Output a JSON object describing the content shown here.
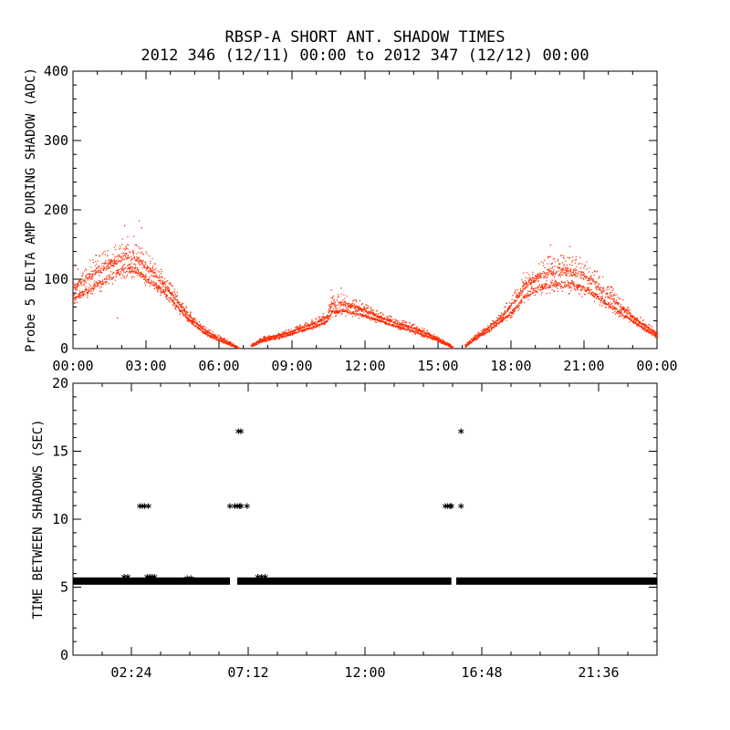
{
  "title": "RBSP-A SHORT ANT. SHADOW TIMES",
  "subtitle": "2012 346 (12/11) 00:00 to 2012 347 (12/12) 00:00",
  "colors": {
    "trace": "#ff2a00",
    "axis": "#000000",
    "marker": "#000000"
  },
  "chart_data": [
    {
      "type": "scatter",
      "name": "delta-amplitude",
      "ylabel": "Probe 5 DELTA AMP DURING SHADOW (ADC)",
      "xlabel": "",
      "xlim": [
        0,
        24
      ],
      "ylim": [
        0,
        400
      ],
      "x_ticks": [
        0,
        3,
        6,
        9,
        12,
        15,
        18,
        21,
        24
      ],
      "x_tick_labels": [
        "00:00",
        "03:00",
        "06:00",
        "09:00",
        "12:00",
        "15:00",
        "18:00",
        "21:00",
        "00:00"
      ],
      "y_ticks": [
        0,
        100,
        200,
        300,
        400
      ],
      "y_tick_labels": [
        "0",
        "100",
        "200",
        "300",
        "400"
      ],
      "gaps": [
        [
          6.8,
          7.3
        ],
        [
          15.6,
          16.1
        ]
      ],
      "envelope": {
        "x": [
          0.0,
          0.5,
          1.0,
          1.5,
          2.0,
          2.5,
          3.0,
          3.5,
          4.0,
          4.5,
          5.0,
          5.5,
          6.0,
          6.5,
          6.8,
          7.3,
          7.8,
          8.5,
          9.0,
          9.5,
          10.0,
          10.4,
          10.6,
          11.0,
          11.5,
          12.0,
          12.5,
          13.0,
          13.5,
          14.0,
          14.5,
          15.0,
          15.6,
          16.1,
          16.5,
          17.0,
          17.5,
          18.0,
          18.3,
          18.5,
          19.0,
          19.5,
          20.0,
          20.5,
          21.0,
          21.5,
          22.0,
          22.5,
          23.0,
          23.5,
          24.0
        ],
        "low": [
          60,
          70,
          80,
          90,
          100,
          100,
          90,
          80,
          65,
          45,
          30,
          18,
          10,
          4,
          0,
          2,
          10,
          15,
          20,
          25,
          30,
          35,
          45,
          48,
          45,
          42,
          38,
          32,
          27,
          22,
          16,
          10,
          0,
          2,
          12,
          22,
          35,
          45,
          55,
          65,
          75,
          80,
          80,
          78,
          75,
          65,
          55,
          45,
          35,
          25,
          15
        ],
        "high": [
          110,
          125,
          140,
          150,
          160,
          165,
          140,
          120,
          95,
          70,
          45,
          30,
          20,
          10,
          3,
          8,
          18,
          25,
          30,
          38,
          45,
          55,
          80,
          80,
          75,
          65,
          55,
          48,
          42,
          36,
          28,
          18,
          5,
          8,
          20,
          35,
          50,
          80,
          95,
          110,
          125,
          135,
          140,
          138,
          130,
          115,
          95,
          75,
          55,
          40,
          28
        ]
      }
    },
    {
      "type": "scatter",
      "name": "time-between-shadows",
      "ylabel": "TIME BETWEEN SHADOWS (SEC)",
      "xlabel": "",
      "xlim": [
        0,
        24
      ],
      "ylim": [
        0,
        20
      ],
      "x_ticks": [
        2.4,
        7.2,
        12.0,
        16.8,
        21.6
      ],
      "x_tick_labels": [
        "02:24",
        "07:12",
        "12:00",
        "16:48",
        "21:36"
      ],
      "y_ticks": [
        0,
        5,
        10,
        15,
        20
      ],
      "y_tick_labels": [
        "0",
        "5",
        "10",
        "15",
        "20"
      ],
      "baseline": {
        "y": 5.45,
        "segments": [
          [
            0.0,
            6.45
          ],
          [
            6.75,
            15.55
          ],
          [
            15.75,
            24.0
          ]
        ]
      },
      "points": {
        "x": [
          2.1,
          2.25,
          3.05,
          3.15,
          3.25,
          3.35,
          4.7,
          4.85,
          7.6,
          7.75,
          7.9,
          2.75,
          2.85,
          2.95,
          3.1,
          6.45,
          6.65,
          6.75,
          6.85,
          6.9,
          7.15,
          15.3,
          15.4,
          15.5,
          15.55,
          15.95,
          6.8,
          6.9,
          15.95
        ],
        "y": [
          5.7,
          5.7,
          5.7,
          5.7,
          5.7,
          5.7,
          5.6,
          5.6,
          5.7,
          5.7,
          5.7,
          10.9,
          10.9,
          10.9,
          10.9,
          10.9,
          10.9,
          10.9,
          10.9,
          10.9,
          10.9,
          10.9,
          10.9,
          10.9,
          10.9,
          10.9,
          16.4,
          16.4,
          16.4
        ]
      }
    }
  ]
}
